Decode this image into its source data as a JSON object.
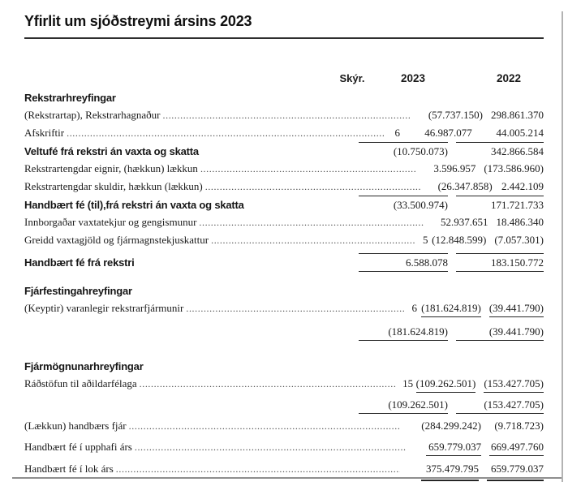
{
  "page": {
    "title": "Yfirlit um sjóðstreymi ársins 2023"
  },
  "colors": {
    "ink": "#1a1a1a",
    "rule": "#2a2a2a",
    "page_border": "#b3b3b3",
    "bottom_rule": "#8e8e8e"
  },
  "table": {
    "headers": {
      "note": "Skýr.",
      "col2023": "2023",
      "col2022": "2022"
    },
    "rows": [
      {
        "type": "section",
        "label": "Rekstrarhreyfingar"
      },
      {
        "type": "item",
        "label": "(Rekstrartap), Rekstrarhagnaður",
        "v2023": "(57.737.150)",
        "v2022": "298.861.370"
      },
      {
        "type": "item",
        "label": "Afskriftir",
        "note": "6",
        "v2023": "46.987.077",
        "v2022": "44.005.214"
      },
      {
        "type": "total",
        "label": "Veltufé frá rekstri án vaxta og skatta",
        "v2023": "(10.750.073)",
        "v2022": "342.866.584"
      },
      {
        "type": "item",
        "label": "Rekstrartengdar eignir, (hækkun) lækkun",
        "v2023": "3.596.957",
        "v2022": "(173.586.960)"
      },
      {
        "type": "item",
        "label": "Rekstrartengdar skuldir, hækkun (lækkun)",
        "v2023": "(26.347.858)",
        "v2022": "2.442.109"
      },
      {
        "type": "total",
        "label": "Handbært fé (til),frá rekstri án vaxta og skatta",
        "v2023": "(33.500.974)",
        "v2022": "171.721.733"
      },
      {
        "type": "item",
        "label": "Innborgaðar vaxtatekjur og gengismunur",
        "v2023": "52.937.651",
        "v2022": "18.486.340"
      },
      {
        "type": "item",
        "label": "Greidd vaxtagjöld og fjármagnstekjuskattur",
        "note": "5",
        "v2023": "(12.848.599)",
        "v2022": "(7.057.301)"
      },
      {
        "type": "total",
        "label": "Handbært fé frá rekstri",
        "v2023": "6.588.078",
        "v2022": "183.150.772"
      },
      {
        "type": "section",
        "label": "Fjárfestingahreyfingar"
      },
      {
        "type": "item",
        "label": "(Keyptir) varanlegir rekstrarfjármunir",
        "note": "6",
        "v2023": "(181.624.819)",
        "v2022": "(39.441.790)"
      },
      {
        "type": "subtotal",
        "v2023": "(181.624.819)",
        "v2022": "(39.441.790)"
      },
      {
        "type": "section",
        "label": "Fjármögnunarhreyfingar"
      },
      {
        "type": "item",
        "label": "Ráðstöfun til aðildarfélaga",
        "note": "15",
        "v2023": "(109.262.501)",
        "v2022": "(153.427.705)"
      },
      {
        "type": "subtotal",
        "v2023": "(109.262.501)",
        "v2022": "(153.427.705)"
      },
      {
        "type": "item",
        "label": "(Lækkun) handbærs fjár",
        "v2023": "(284.299.242)",
        "v2022": "(9.718.723)"
      },
      {
        "type": "item",
        "label": "Handbært fé í upphafi árs",
        "v2023": "659.779.037",
        "v2022": "669.497.760"
      },
      {
        "type": "item",
        "label": "Handbært fé í lok árs",
        "v2023": "375.479.795",
        "v2022": "659.779.037"
      }
    ]
  }
}
